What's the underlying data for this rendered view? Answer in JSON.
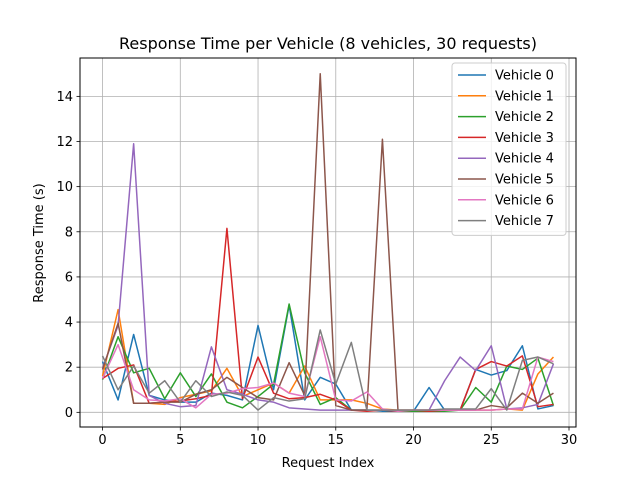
{
  "chart_data": {
    "type": "line",
    "title": "Response Time per Vehicle (8 vehicles, 30 requests)",
    "xlabel": "Request Index",
    "ylabel": "Response Time (s)",
    "xlim": [
      -1.45,
      30.45
    ],
    "ylim": [
      -0.65,
      15.7
    ],
    "xticks": [
      0,
      5,
      10,
      15,
      20,
      25,
      30
    ],
    "yticks": [
      0,
      2,
      4,
      6,
      8,
      10,
      12,
      14
    ],
    "grid": true,
    "legend_position": "top-right",
    "x": [
      0,
      1,
      2,
      3,
      4,
      5,
      6,
      7,
      8,
      9,
      10,
      11,
      12,
      13,
      14,
      15,
      16,
      17,
      18,
      19,
      20,
      21,
      22,
      23,
      24,
      25,
      26,
      27,
      28,
      29
    ],
    "series": [
      {
        "name": "Vehicle 0",
        "color": "#1f77b4",
        "values": [
          2.25,
          0.55,
          3.45,
          0.75,
          0.55,
          0.45,
          0.45,
          0.85,
          0.75,
          0.55,
          3.85,
          1.0,
          4.75,
          0.55,
          1.55,
          1.25,
          0.1,
          0.1,
          0.05,
          0.05,
          0.05,
          1.1,
          0.1,
          0.1,
          1.9,
          1.65,
          1.85,
          2.95,
          0.15,
          0.3
        ]
      },
      {
        "name": "Vehicle 1",
        "color": "#ff7f0e",
        "values": [
          1.6,
          4.55,
          0.4,
          0.4,
          0.35,
          0.65,
          0.8,
          0.95,
          1.95,
          0.7,
          1.0,
          1.3,
          0.85,
          2.05,
          0.55,
          0.55,
          0.55,
          0.4,
          0.15,
          0.1,
          0.1,
          0.1,
          0.1,
          0.1,
          0.1,
          0.1,
          0.15,
          0.1,
          1.7,
          2.45
        ]
      },
      {
        "name": "Vehicle 2",
        "color": "#2ca02c",
        "values": [
          1.45,
          3.35,
          1.75,
          1.95,
          0.6,
          1.75,
          0.7,
          1.7,
          0.45,
          0.2,
          0.7,
          1.25,
          4.8,
          1.75,
          0.35,
          0.65,
          0.1,
          0.1,
          0.1,
          0.05,
          0.05,
          0.05,
          0.05,
          0.1,
          1.1,
          0.45,
          2.05,
          1.9,
          2.4,
          0.3
        ]
      },
      {
        "name": "Vehicle 3",
        "color": "#d62728",
        "values": [
          1.5,
          1.95,
          2.1,
          0.4,
          0.45,
          0.5,
          0.6,
          0.75,
          8.15,
          0.6,
          2.45,
          0.85,
          0.6,
          0.65,
          0.8,
          0.55,
          0.1,
          0.05,
          0.1,
          0.05,
          0.1,
          0.05,
          0.1,
          0.1,
          1.9,
          2.25,
          2.05,
          2.5,
          0.25,
          0.35
        ]
      },
      {
        "name": "Vehicle 4",
        "color": "#9467bd",
        "values": [
          1.95,
          3.85,
          11.9,
          0.75,
          0.4,
          0.25,
          0.3,
          2.9,
          1.0,
          0.8,
          0.55,
          0.45,
          0.2,
          0.15,
          0.1,
          0.1,
          0.1,
          0.1,
          0.1,
          0.1,
          0.1,
          0.1,
          1.4,
          2.45,
          1.85,
          2.95,
          0.15,
          0.2,
          0.35,
          2.15
        ]
      },
      {
        "name": "Vehicle 5",
        "color": "#8c564b",
        "values": [
          1.9,
          3.95,
          0.4,
          0.4,
          0.45,
          0.45,
          0.8,
          1.0,
          1.55,
          1.1,
          0.65,
          0.55,
          2.2,
          0.75,
          15.0,
          0.3,
          0.1,
          0.1,
          12.1,
          0.1,
          0.1,
          0.1,
          0.1,
          0.1,
          0.1,
          0.3,
          0.2,
          0.85,
          0.4,
          0.85
        ]
      },
      {
        "name": "Vehicle 6",
        "color": "#e377c2",
        "values": [
          1.5,
          3.0,
          1.0,
          0.55,
          0.5,
          0.6,
          0.2,
          0.8,
          0.85,
          1.05,
          1.1,
          1.3,
          0.85,
          0.7,
          3.35,
          0.55,
          0.5,
          0.9,
          0.15,
          0.05,
          0.1,
          0.1,
          0.1,
          0.1,
          0.1,
          0.1,
          0.15,
          0.15,
          2.45,
          2.25
        ]
      },
      {
        "name": "Vehicle 7",
        "color": "#7f7f7f",
        "values": [
          2.5,
          1.0,
          2.05,
          0.85,
          1.4,
          0.45,
          1.4,
          0.7,
          0.9,
          0.75,
          0.1,
          0.65,
          0.5,
          0.6,
          3.65,
          1.25,
          3.1,
          0.1,
          0.1,
          0.1,
          0.1,
          0.1,
          0.15,
          0.15,
          0.15,
          1.05,
          0.1,
          2.3,
          2.45,
          2.15
        ]
      }
    ]
  }
}
